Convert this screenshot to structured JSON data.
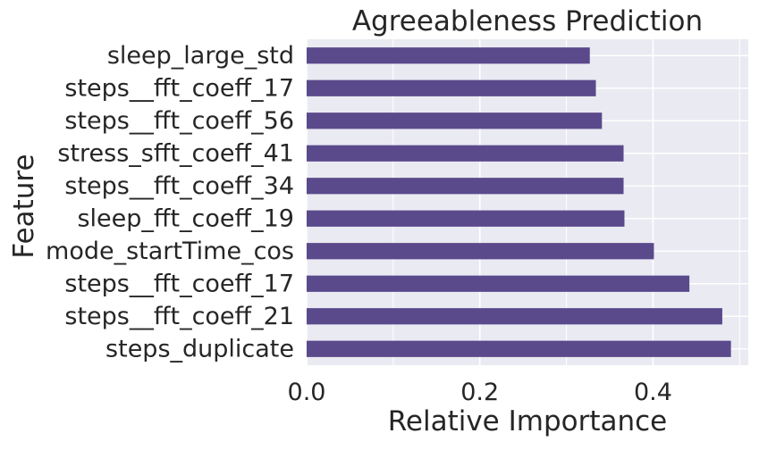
{
  "chart_data": {
    "type": "bar",
    "orientation": "horizontal",
    "title": "Agreeableness Prediction",
    "xlabel": "Relative Importance",
    "ylabel": "Feature",
    "xlim": [
      0.0,
      0.51
    ],
    "xticks": [
      0.0,
      0.2,
      0.4
    ],
    "xtick_labels": [
      "0.0",
      "0.2",
      "0.4"
    ],
    "grid": true,
    "categories": [
      "sleep_large_std",
      "steps__fft_coeff_17",
      "steps__fft_coeff_56",
      "stress_sfft_coeff_41",
      "steps__fft_coeff_34",
      "sleep_fft_coeff_19",
      "mode_startTime_cos",
      "steps__fft_coeff_17",
      "steps__fft_coeff_21",
      "steps_duplicate"
    ],
    "values": [
      0.327,
      0.334,
      0.341,
      0.366,
      0.366,
      0.367,
      0.401,
      0.442,
      0.48,
      0.49
    ],
    "bar_color": "#5a4a8c",
    "background_color": "#eaeaf2",
    "grid_color": "#ffffff"
  }
}
